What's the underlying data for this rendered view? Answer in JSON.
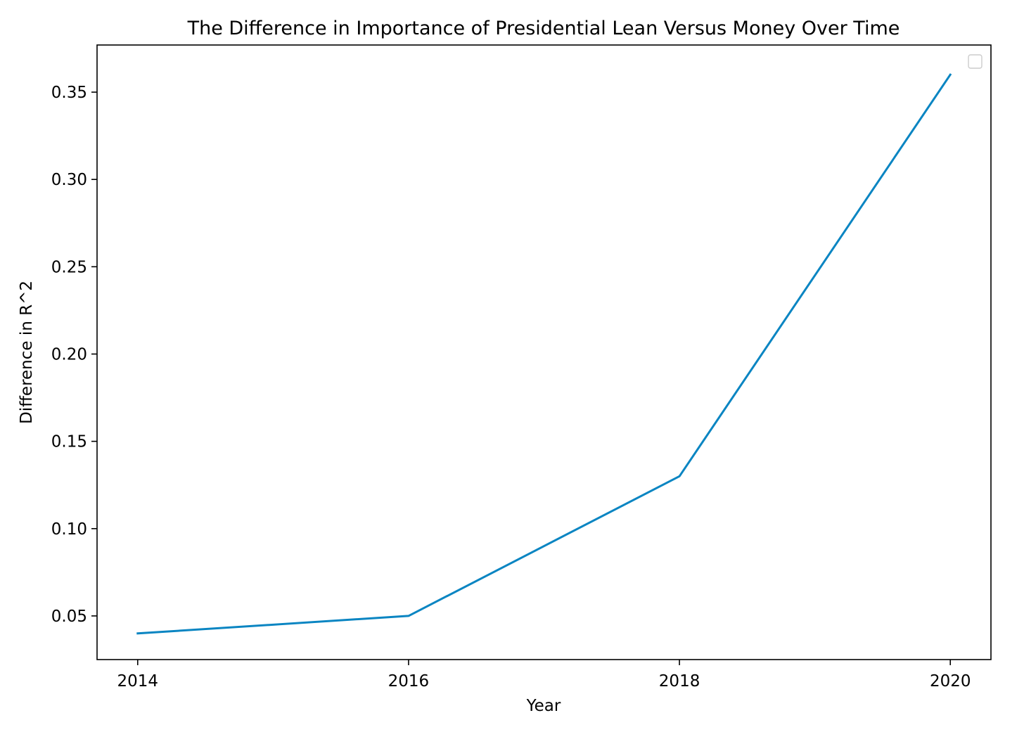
{
  "chart_data": {
    "type": "line",
    "title": "The Difference in Importance of Presidential Lean Versus Money Over Time",
    "xlabel": "Year",
    "ylabel": "Difference in R^2",
    "x": [
      2014,
      2016,
      2018,
      2020
    ],
    "series": [
      {
        "values": [
          0.04,
          0.05,
          0.13,
          0.36
        ],
        "color": "#0a85c2"
      }
    ],
    "xlim": [
      2013.7,
      2020.3
    ],
    "ylim": [
      0.025,
      0.377
    ],
    "xticks": [
      2014,
      2016,
      2018,
      2020
    ],
    "xtick_labels": [
      "2014",
      "2016",
      "2018",
      "2020"
    ],
    "yticks": [
      0.05,
      0.1,
      0.15,
      0.2,
      0.25,
      0.3,
      0.35
    ],
    "ytick_labels": [
      "0.05",
      "0.10",
      "0.15",
      "0.20",
      "0.25",
      "0.30",
      "0.35"
    ],
    "grid": false,
    "legend": {
      "position": "top-right",
      "entries": []
    }
  }
}
